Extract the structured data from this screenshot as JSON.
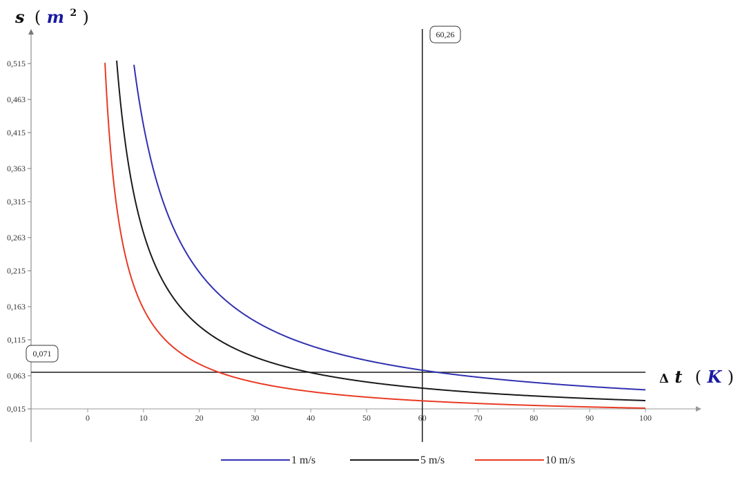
{
  "chart_data": {
    "type": "line",
    "title": "",
    "x_axis": {
      "symbol": "Δ",
      "var": "t",
      "unit": "K",
      "ticks": [
        "0",
        "10",
        "20",
        "30",
        "40",
        "50",
        "60",
        "70",
        "80",
        "90",
        "100"
      ],
      "range": [
        -10,
        100
      ]
    },
    "y_axis": {
      "var": "s",
      "unit_base": "m",
      "unit_exp": "2",
      "ticks": [
        "0,015",
        "0,063",
        "0,115",
        "0,163",
        "0,215",
        "0,263",
        "0,315",
        "0,363",
        "0,415",
        "0,463",
        "0,515"
      ],
      "tick_values": [
        0.015,
        0.063,
        0.115,
        0.163,
        0.215,
        0.263,
        0.315,
        0.363,
        0.415,
        0.463,
        0.515
      ],
      "range": [
        0.015,
        0.515
      ]
    },
    "series": [
      {
        "name": "1 m/s",
        "color": "#3030b0",
        "k": 4.26,
        "x_start": 8.3,
        "x_end": 100
      },
      {
        "name": "5 m/s",
        "color": "#1a1a1a",
        "k": 2.7,
        "x_start": 5.2,
        "x_end": 100
      },
      {
        "name": "10 m/s",
        "color": "#e83a24",
        "k": 1.6,
        "x_start": 3.1,
        "x_end": 100
      }
    ],
    "reference_lines": {
      "vertical": {
        "x": 60,
        "label": "60,26"
      },
      "horizontal": {
        "y": 0.068,
        "label": "0,071"
      }
    },
    "legend": {
      "position": "bottom-center"
    },
    "grid": false
  }
}
